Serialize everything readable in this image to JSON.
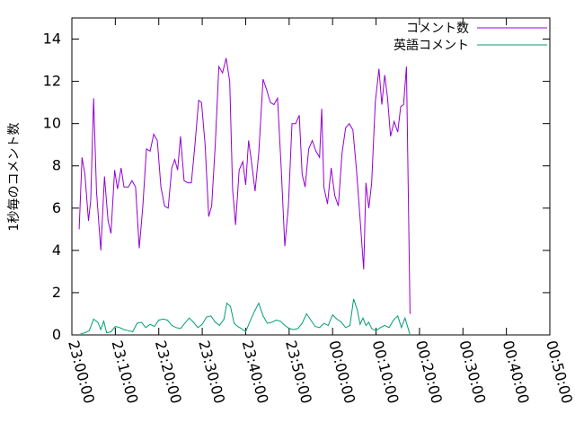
{
  "chart_data": {
    "type": "line",
    "ylabel": "1秒毎のコメント数",
    "ylim": [
      0,
      15
    ],
    "xlim": [
      "23:00:00",
      "00:50:00"
    ],
    "y_ticks": [
      0,
      2,
      4,
      6,
      8,
      10,
      12,
      14
    ],
    "x_ticks": [
      "23:00:00",
      "23:10:00",
      "23:20:00",
      "23:30:00",
      "23:40:00",
      "23:50:00",
      "00:00:00",
      "00:10:00",
      "00:20:00",
      "00:30:00",
      "00:40:00",
      "00:50:00"
    ],
    "grid": false,
    "legend_position": "top-right",
    "series": [
      {
        "name": "コメント数",
        "color": "#9400d3",
        "points": [
          [
            "23:01:40",
            5.0
          ],
          [
            "23:02:20",
            8.4
          ],
          [
            "23:03:00",
            7.6
          ],
          [
            "23:03:50",
            5.4
          ],
          [
            "23:04:20",
            6.4
          ],
          [
            "23:05:00",
            11.2
          ],
          [
            "23:05:40",
            6.8
          ],
          [
            "23:06:40",
            4.0
          ],
          [
            "23:07:30",
            7.5
          ],
          [
            "23:08:20",
            5.4
          ],
          [
            "23:09:00",
            4.8
          ],
          [
            "23:09:50",
            7.8
          ],
          [
            "23:10:30",
            6.9
          ],
          [
            "23:11:20",
            7.9
          ],
          [
            "23:12:00",
            7.0
          ],
          [
            "23:13:00",
            7.0
          ],
          [
            "23:13:50",
            7.3
          ],
          [
            "23:14:40",
            7.0
          ],
          [
            "23:15:30",
            4.1
          ],
          [
            "23:16:20",
            6.1
          ],
          [
            "23:17:10",
            8.8
          ],
          [
            "23:18:00",
            8.7
          ],
          [
            "23:18:50",
            9.5
          ],
          [
            "23:19:40",
            9.2
          ],
          [
            "23:20:30",
            7.0
          ],
          [
            "23:21:20",
            6.1
          ],
          [
            "23:22:10",
            6.0
          ],
          [
            "23:23:00",
            7.9
          ],
          [
            "23:23:40",
            8.3
          ],
          [
            "23:24:20",
            7.8
          ],
          [
            "23:25:00",
            9.4
          ],
          [
            "23:25:50",
            7.3
          ],
          [
            "23:26:40",
            7.2
          ],
          [
            "23:27:30",
            7.2
          ],
          [
            "23:28:20",
            9.0
          ],
          [
            "23:29:10",
            11.1
          ],
          [
            "23:29:50",
            11.0
          ],
          [
            "23:30:40",
            9.0
          ],
          [
            "23:31:30",
            5.6
          ],
          [
            "23:32:10",
            6.1
          ],
          [
            "23:33:00",
            9.0
          ],
          [
            "23:33:50",
            12.7
          ],
          [
            "23:34:40",
            12.4
          ],
          [
            "23:35:30",
            13.1
          ],
          [
            "23:36:20",
            12.0
          ],
          [
            "23:37:00",
            6.9
          ],
          [
            "23:37:40",
            5.2
          ],
          [
            "23:38:30",
            7.8
          ],
          [
            "23:39:20",
            8.2
          ],
          [
            "23:40:00",
            7.1
          ],
          [
            "23:40:40",
            9.2
          ],
          [
            "23:41:20",
            8.2
          ],
          [
            "23:42:10",
            6.8
          ],
          [
            "23:43:00",
            8.6
          ],
          [
            "23:44:00",
            12.1
          ],
          [
            "23:44:50",
            11.6
          ],
          [
            "23:45:40",
            11.0
          ],
          [
            "23:46:30",
            10.9
          ],
          [
            "23:47:20",
            11.2
          ],
          [
            "23:48:10",
            7.9
          ],
          [
            "23:49:00",
            4.2
          ],
          [
            "23:49:50",
            6.1
          ],
          [
            "23:50:40",
            10.0
          ],
          [
            "23:51:30",
            10.0
          ],
          [
            "23:52:20",
            10.4
          ],
          [
            "23:53:00",
            7.6
          ],
          [
            "23:53:40",
            7.0
          ],
          [
            "23:54:30",
            8.8
          ],
          [
            "23:55:20",
            9.2
          ],
          [
            "23:56:10",
            8.7
          ],
          [
            "23:57:00",
            8.4
          ],
          [
            "23:57:30",
            10.7
          ],
          [
            "23:58:00",
            7.0
          ],
          [
            "23:58:50",
            6.2
          ],
          [
            "23:59:40",
            7.9
          ],
          [
            "00:00:30",
            6.6
          ],
          [
            "00:01:20",
            6.1
          ],
          [
            "00:02:10",
            8.6
          ],
          [
            "00:03:00",
            9.8
          ],
          [
            "00:03:50",
            10.0
          ],
          [
            "00:04:40",
            9.7
          ],
          [
            "00:05:30",
            7.8
          ],
          [
            "00:06:20",
            5.5
          ],
          [
            "00:07:10",
            3.1
          ],
          [
            "00:07:40",
            7.2
          ],
          [
            "00:08:20",
            6.0
          ],
          [
            "00:09:00",
            7.2
          ],
          [
            "00:09:50",
            11.0
          ],
          [
            "00:10:40",
            12.6
          ],
          [
            "00:11:20",
            10.9
          ],
          [
            "00:12:00",
            12.3
          ],
          [
            "00:12:40",
            11.2
          ],
          [
            "00:13:20",
            9.4
          ],
          [
            "00:14:10",
            10.1
          ],
          [
            "00:15:00",
            9.6
          ],
          [
            "00:15:40",
            10.8
          ],
          [
            "00:16:20",
            10.9
          ],
          [
            "00:17:00",
            12.7
          ],
          [
            "00:17:50",
            1.0
          ]
        ]
      },
      {
        "name": "英語コメント",
        "color": "#009e73",
        "points": [
          [
            "23:02:00",
            0.05
          ],
          [
            "23:03:00",
            0.1
          ],
          [
            "23:04:00",
            0.2
          ],
          [
            "23:05:00",
            0.75
          ],
          [
            "23:06:00",
            0.6
          ],
          [
            "23:06:40",
            0.25
          ],
          [
            "23:07:20",
            0.65
          ],
          [
            "23:08:00",
            0.1
          ],
          [
            "23:09:00",
            0.15
          ],
          [
            "23:10:00",
            0.4
          ],
          [
            "23:11:00",
            0.35
          ],
          [
            "23:12:00",
            0.25
          ],
          [
            "23:13:00",
            0.2
          ],
          [
            "23:14:00",
            0.15
          ],
          [
            "23:15:00",
            0.55
          ],
          [
            "23:16:00",
            0.6
          ],
          [
            "23:17:00",
            0.35
          ],
          [
            "23:18:00",
            0.5
          ],
          [
            "23:19:00",
            0.4
          ],
          [
            "23:20:00",
            0.7
          ],
          [
            "23:21:00",
            0.75
          ],
          [
            "23:22:00",
            0.7
          ],
          [
            "23:23:00",
            0.45
          ],
          [
            "23:24:00",
            0.35
          ],
          [
            "23:25:00",
            0.3
          ],
          [
            "23:26:00",
            0.55
          ],
          [
            "23:27:00",
            0.8
          ],
          [
            "23:28:00",
            0.6
          ],
          [
            "23:29:00",
            0.35
          ],
          [
            "23:30:00",
            0.5
          ],
          [
            "23:31:00",
            0.85
          ],
          [
            "23:32:00",
            0.9
          ],
          [
            "23:33:00",
            0.6
          ],
          [
            "23:34:00",
            0.45
          ],
          [
            "23:35:00",
            0.75
          ],
          [
            "23:35:40",
            1.5
          ],
          [
            "23:36:30",
            1.35
          ],
          [
            "23:37:20",
            0.55
          ],
          [
            "23:38:10",
            0.4
          ],
          [
            "23:39:00",
            0.3
          ],
          [
            "23:40:00",
            0.15
          ],
          [
            "23:41:00",
            0.65
          ],
          [
            "23:42:00",
            1.1
          ],
          [
            "23:43:00",
            1.5
          ],
          [
            "23:44:00",
            0.9
          ],
          [
            "23:45:00",
            0.55
          ],
          [
            "23:46:00",
            0.6
          ],
          [
            "23:47:00",
            0.7
          ],
          [
            "23:48:00",
            0.65
          ],
          [
            "23:49:00",
            0.45
          ],
          [
            "23:50:00",
            0.3
          ],
          [
            "23:51:00",
            0.25
          ],
          [
            "23:52:00",
            0.3
          ],
          [
            "23:53:00",
            0.55
          ],
          [
            "23:54:00",
            1.0
          ],
          [
            "23:55:00",
            0.7
          ],
          [
            "23:56:00",
            0.4
          ],
          [
            "23:57:00",
            0.35
          ],
          [
            "23:58:00",
            0.55
          ],
          [
            "23:59:00",
            0.45
          ],
          [
            "00:00:00",
            0.95
          ],
          [
            "00:01:00",
            0.75
          ],
          [
            "00:02:00",
            0.6
          ],
          [
            "00:03:00",
            0.35
          ],
          [
            "00:04:00",
            0.45
          ],
          [
            "00:04:50",
            1.7
          ],
          [
            "00:05:40",
            1.2
          ],
          [
            "00:06:20",
            0.5
          ],
          [
            "00:07:00",
            0.8
          ],
          [
            "00:07:40",
            0.45
          ],
          [
            "00:08:20",
            0.6
          ],
          [
            "00:09:00",
            0.3
          ],
          [
            "00:10:00",
            0.2
          ],
          [
            "00:11:00",
            0.35
          ],
          [
            "00:12:00",
            0.45
          ],
          [
            "00:13:00",
            0.35
          ],
          [
            "00:14:00",
            0.7
          ],
          [
            "00:15:00",
            0.9
          ],
          [
            "00:15:50",
            0.35
          ],
          [
            "00:16:40",
            0.8
          ],
          [
            "00:17:20",
            0.35
          ],
          [
            "00:17:50",
            0.0
          ]
        ]
      }
    ]
  }
}
